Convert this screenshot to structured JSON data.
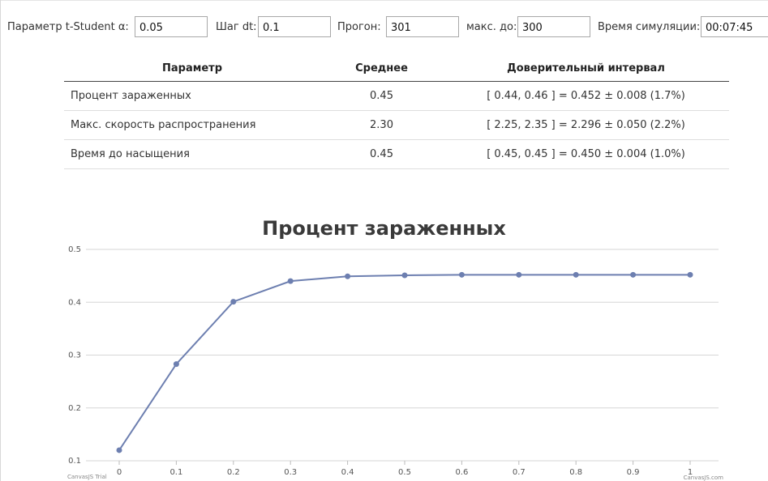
{
  "controls": {
    "alpha_label": "Параметр t-Student α:",
    "alpha_value": "0.05",
    "dt_label": "Шаг dt:",
    "dt_value": "0.1",
    "runs_label": "Прогон:",
    "runs_value": "301",
    "max_label": "макс. до:",
    "max_value": "300",
    "simtime_label": "Время симуляции:",
    "simtime_value": "00:07:45"
  },
  "table": {
    "headers": [
      "Параметр",
      "Среднее",
      "Доверительный интервал"
    ],
    "rows": [
      {
        "param": "Процент зараженных",
        "mean": "0.45",
        "ci": "[ 0.44, 0.46 ] = 0.452 ± 0.008 (1.7%)"
      },
      {
        "param": "Макс. скорость распространения",
        "mean": "2.30",
        "ci": "[ 2.25, 2.35 ] = 2.296 ± 0.050 (2.2%)"
      },
      {
        "param": "Время до насыщения",
        "mean": "0.45",
        "ci": "[ 0.45, 0.45 ] = 0.450 ± 0.004 (1.0%)"
      }
    ]
  },
  "chart_data": {
    "type": "line",
    "title": "Процент зараженных",
    "x": [
      0,
      0.1,
      0.2,
      0.3,
      0.4,
      0.5,
      0.6,
      0.7,
      0.8,
      0.9,
      1
    ],
    "series": [
      {
        "values": [
          0.12,
          0.283,
          0.401,
          0.44,
          0.449,
          0.451,
          0.452,
          0.452,
          0.452,
          0.452,
          0.452
        ],
        "color": "#6d7fb0"
      }
    ],
    "x_ticks": [
      "0",
      "0.1",
      "0.2",
      "0.3",
      "0.4",
      "0.5",
      "0.6",
      "0.7",
      "0.8",
      "0.9",
      "1"
    ],
    "y_ticks": [
      "0.1",
      "0.2",
      "0.3",
      "0.4",
      "0.5"
    ],
    "xlim": [
      0,
      1
    ],
    "ylim": [
      0.1,
      0.5
    ],
    "grid": true,
    "credit_left": "CanvasJS Trial",
    "credit_right": "CanvasJS.com"
  }
}
